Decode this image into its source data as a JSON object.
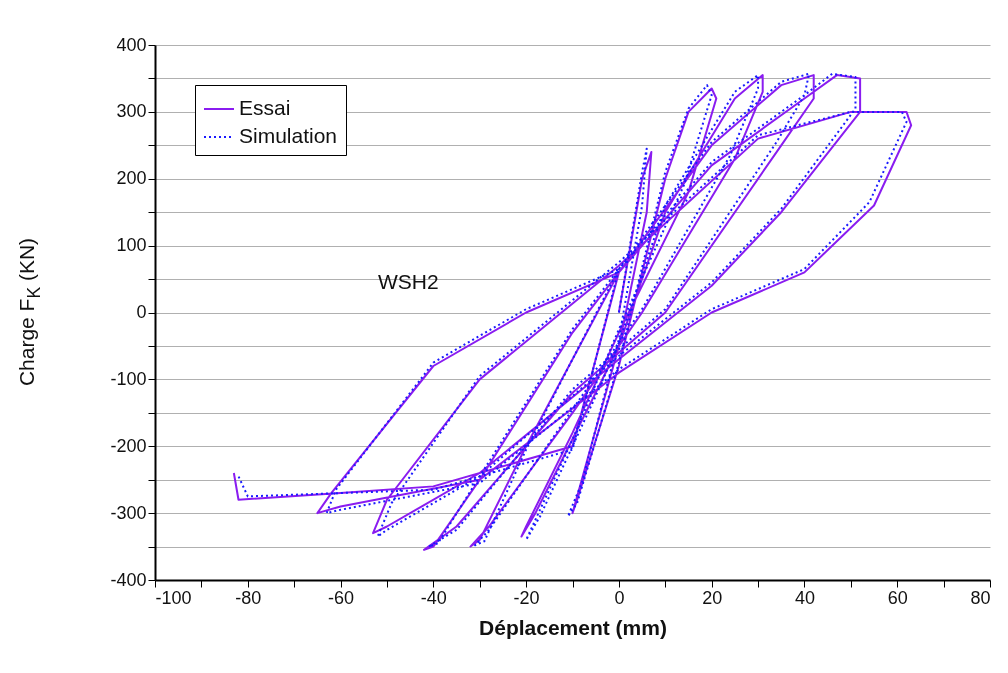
{
  "chart_data": {
    "type": "line",
    "xlabel": "Déplacement (mm)",
    "ylabel": "Charge F$_{K}$ (KN)",
    "annotations": [
      "WSH2"
    ],
    "xlim": [
      -100,
      80
    ],
    "ylim": [
      -400,
      400
    ],
    "xticks": [
      -100,
      {
        "value": -90,
        "label": null
      },
      -80,
      {
        "value": -70,
        "label": null
      },
      -60,
      {
        "value": -50,
        "label": null
      },
      -40,
      {
        "value": -30,
        "label": null
      },
      -20,
      {
        "value": -10,
        "label": null
      },
      0,
      {
        "value": 10,
        "label": null
      },
      20,
      {
        "value": 30,
        "label": null
      },
      40,
      {
        "value": 50,
        "label": null
      },
      60,
      {
        "value": 70,
        "label": null
      },
      80
    ],
    "yticks": [
      -400,
      {
        "value": -350,
        "label": null
      },
      -300,
      {
        "value": -250,
        "label": null
      },
      -200,
      {
        "value": -150,
        "label": null
      },
      -100,
      {
        "value": -50,
        "label": null
      },
      0,
      {
        "value": 50,
        "label": null
      },
      100,
      {
        "value": 150,
        "label": null
      },
      200,
      {
        "value": 250,
        "label": null
      },
      300,
      {
        "value": 350,
        "label": null
      },
      400
    ],
    "grid": "y",
    "legend": "top left",
    "marker": "none",
    "series": [
      {
        "name": "Essai",
        "color": "#8a1cf0",
        "line_style": "solid",
        "x": [
          0,
          5,
          7,
          6,
          0,
          -8,
          -10,
          -9,
          0,
          10,
          15,
          20,
          21,
          15,
          0,
          -10,
          -20,
          -21,
          -18,
          -5,
          0,
          10,
          25,
          31,
          31,
          25,
          5,
          -10,
          -28,
          -32,
          -30,
          -20,
          0,
          20,
          35,
          42,
          42,
          35,
          10,
          -10,
          -35,
          -42,
          -40,
          -30,
          -10,
          0,
          20,
          40,
          47,
          52,
          52,
          35,
          20,
          0,
          -30,
          -50,
          -53,
          -50,
          -30,
          0,
          30,
          50,
          62,
          63,
          55,
          40,
          20,
          0,
          -30,
          -60,
          -65,
          -62,
          -40,
          -20,
          0,
          -10,
          -40,
          -60,
          -82,
          -83
        ],
        "values": [
          0,
          200,
          240,
          150,
          -50,
          -250,
          -300,
          -280,
          -80,
          200,
          300,
          335,
          320,
          180,
          -30,
          -180,
          -320,
          -335,
          -300,
          -120,
          -50,
          150,
          320,
          355,
          330,
          230,
          0,
          -150,
          -320,
          -350,
          -340,
          -200,
          60,
          250,
          340,
          355,
          320,
          250,
          0,
          -120,
          -320,
          -355,
          -350,
          -250,
          -30,
          60,
          220,
          320,
          355,
          350,
          300,
          150,
          40,
          -70,
          -240,
          -320,
          -330,
          -280,
          -100,
          70,
          260,
          300,
          300,
          280,
          160,
          60,
          0,
          -90,
          -250,
          -290,
          -300,
          -270,
          -80,
          0,
          60,
          -200,
          -260,
          -270,
          -280,
          -240
        ]
      },
      {
        "name": "Simulation",
        "color": "#1a1aff",
        "line_style": "dotted",
        "x": [
          0,
          5,
          6,
          5,
          0,
          -8,
          -11,
          -9,
          0,
          10,
          15,
          19,
          20,
          14,
          0,
          -10,
          -19,
          -20,
          -17,
          -5,
          0,
          10,
          25,
          30,
          30,
          24,
          5,
          -10,
          -28,
          -31,
          -29,
          -20,
          0,
          20,
          35,
          41,
          40,
          34,
          10,
          -10,
          -35,
          -41,
          -39,
          -30,
          -10,
          0,
          20,
          40,
          46,
          51,
          51,
          35,
          20,
          0,
          -30,
          -50,
          -52,
          -49,
          -30,
          0,
          30,
          50,
          61,
          62,
          54,
          40,
          20,
          0,
          -30,
          -60,
          -63,
          -61,
          -40,
          -20,
          0,
          -10,
          -40,
          -60,
          -80,
          -82
        ],
        "values": [
          0,
          210,
          245,
          160,
          -40,
          -255,
          -305,
          -285,
          -75,
          210,
          305,
          340,
          325,
          190,
          -25,
          -190,
          -325,
          -340,
          -305,
          -125,
          -45,
          160,
          330,
          355,
          335,
          235,
          5,
          -145,
          -325,
          -348,
          -342,
          -205,
          65,
          255,
          345,
          357,
          325,
          255,
          5,
          -115,
          -325,
          -350,
          -345,
          -245,
          -25,
          65,
          225,
          325,
          357,
          352,
          305,
          155,
          45,
          -65,
          -245,
          -325,
          -335,
          -285,
          -95,
          75,
          265,
          300,
          300,
          285,
          165,
          65,
          5,
          -85,
          -255,
          -295,
          -300,
          -265,
          -75,
          5,
          65,
          -205,
          -265,
          -270,
          -275,
          -245
        ]
      }
    ]
  }
}
